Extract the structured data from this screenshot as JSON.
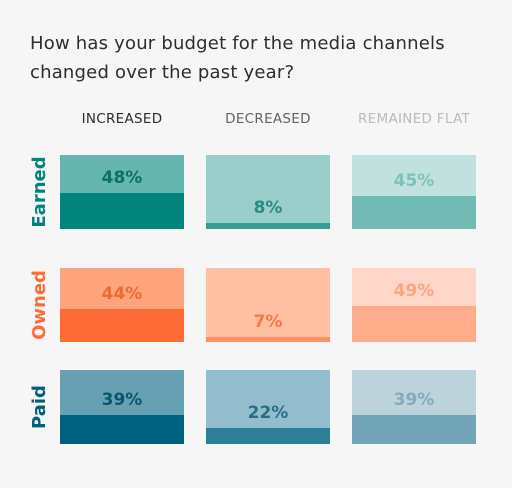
{
  "title": "How has your budget for the media channels changed over the past year?",
  "chart_data": {
    "type": "table",
    "title": "How has your budget for the media channels changed over the past year?",
    "columns": [
      {
        "label": "INCREASED",
        "color": "#2d2d2d"
      },
      {
        "label": "DECREASED",
        "color": "#5f6466"
      },
      {
        "label": "REMAINED FLAT",
        "color": "#b7bcbd"
      }
    ],
    "rows": [
      {
        "label": "Earned",
        "label_color": "#00857c",
        "cells": [
          {
            "value": 48,
            "text": "48%",
            "bg": "#66b6b0",
            "fill": "#00857c",
            "text_color": "#0d6f69"
          },
          {
            "value": 8,
            "text": "8%",
            "bg": "#99cecb",
            "fill": "#33a098",
            "text_color": "#2a8a84"
          },
          {
            "value": 45,
            "text": "45%",
            "bg": "#c1e1df",
            "fill": "#72bbb5",
            "text_color": "#7ec1bb"
          }
        ]
      },
      {
        "label": "Owned",
        "label_color": "#ff6b35",
        "cells": [
          {
            "value": 44,
            "text": "44%",
            "bg": "#ffa47d",
            "fill": "#ff6b35",
            "text_color": "#f06a34"
          },
          {
            "value": 7,
            "text": "7%",
            "bg": "#ffbfa3",
            "fill": "#ff9063",
            "text_color": "#f47a48"
          },
          {
            "value": 49,
            "text": "49%",
            "bg": "#ffd7c8",
            "fill": "#ffac8a",
            "text_color": "#fba585"
          }
        ]
      },
      {
        "label": "Paid",
        "label_color": "#00607f",
        "cells": [
          {
            "value": 39,
            "text": "39%",
            "bg": "#66a0b2",
            "fill": "#00607f",
            "text_color": "#0b5470"
          },
          {
            "value": 22,
            "text": "22%",
            "bg": "#93bccc",
            "fill": "#2d7e97",
            "text_color": "#286e86"
          },
          {
            "value": 39,
            "text": "39%",
            "bg": "#bcd3dc",
            "fill": "#70a4b6",
            "text_color": "#82abbc"
          }
        ]
      }
    ]
  }
}
